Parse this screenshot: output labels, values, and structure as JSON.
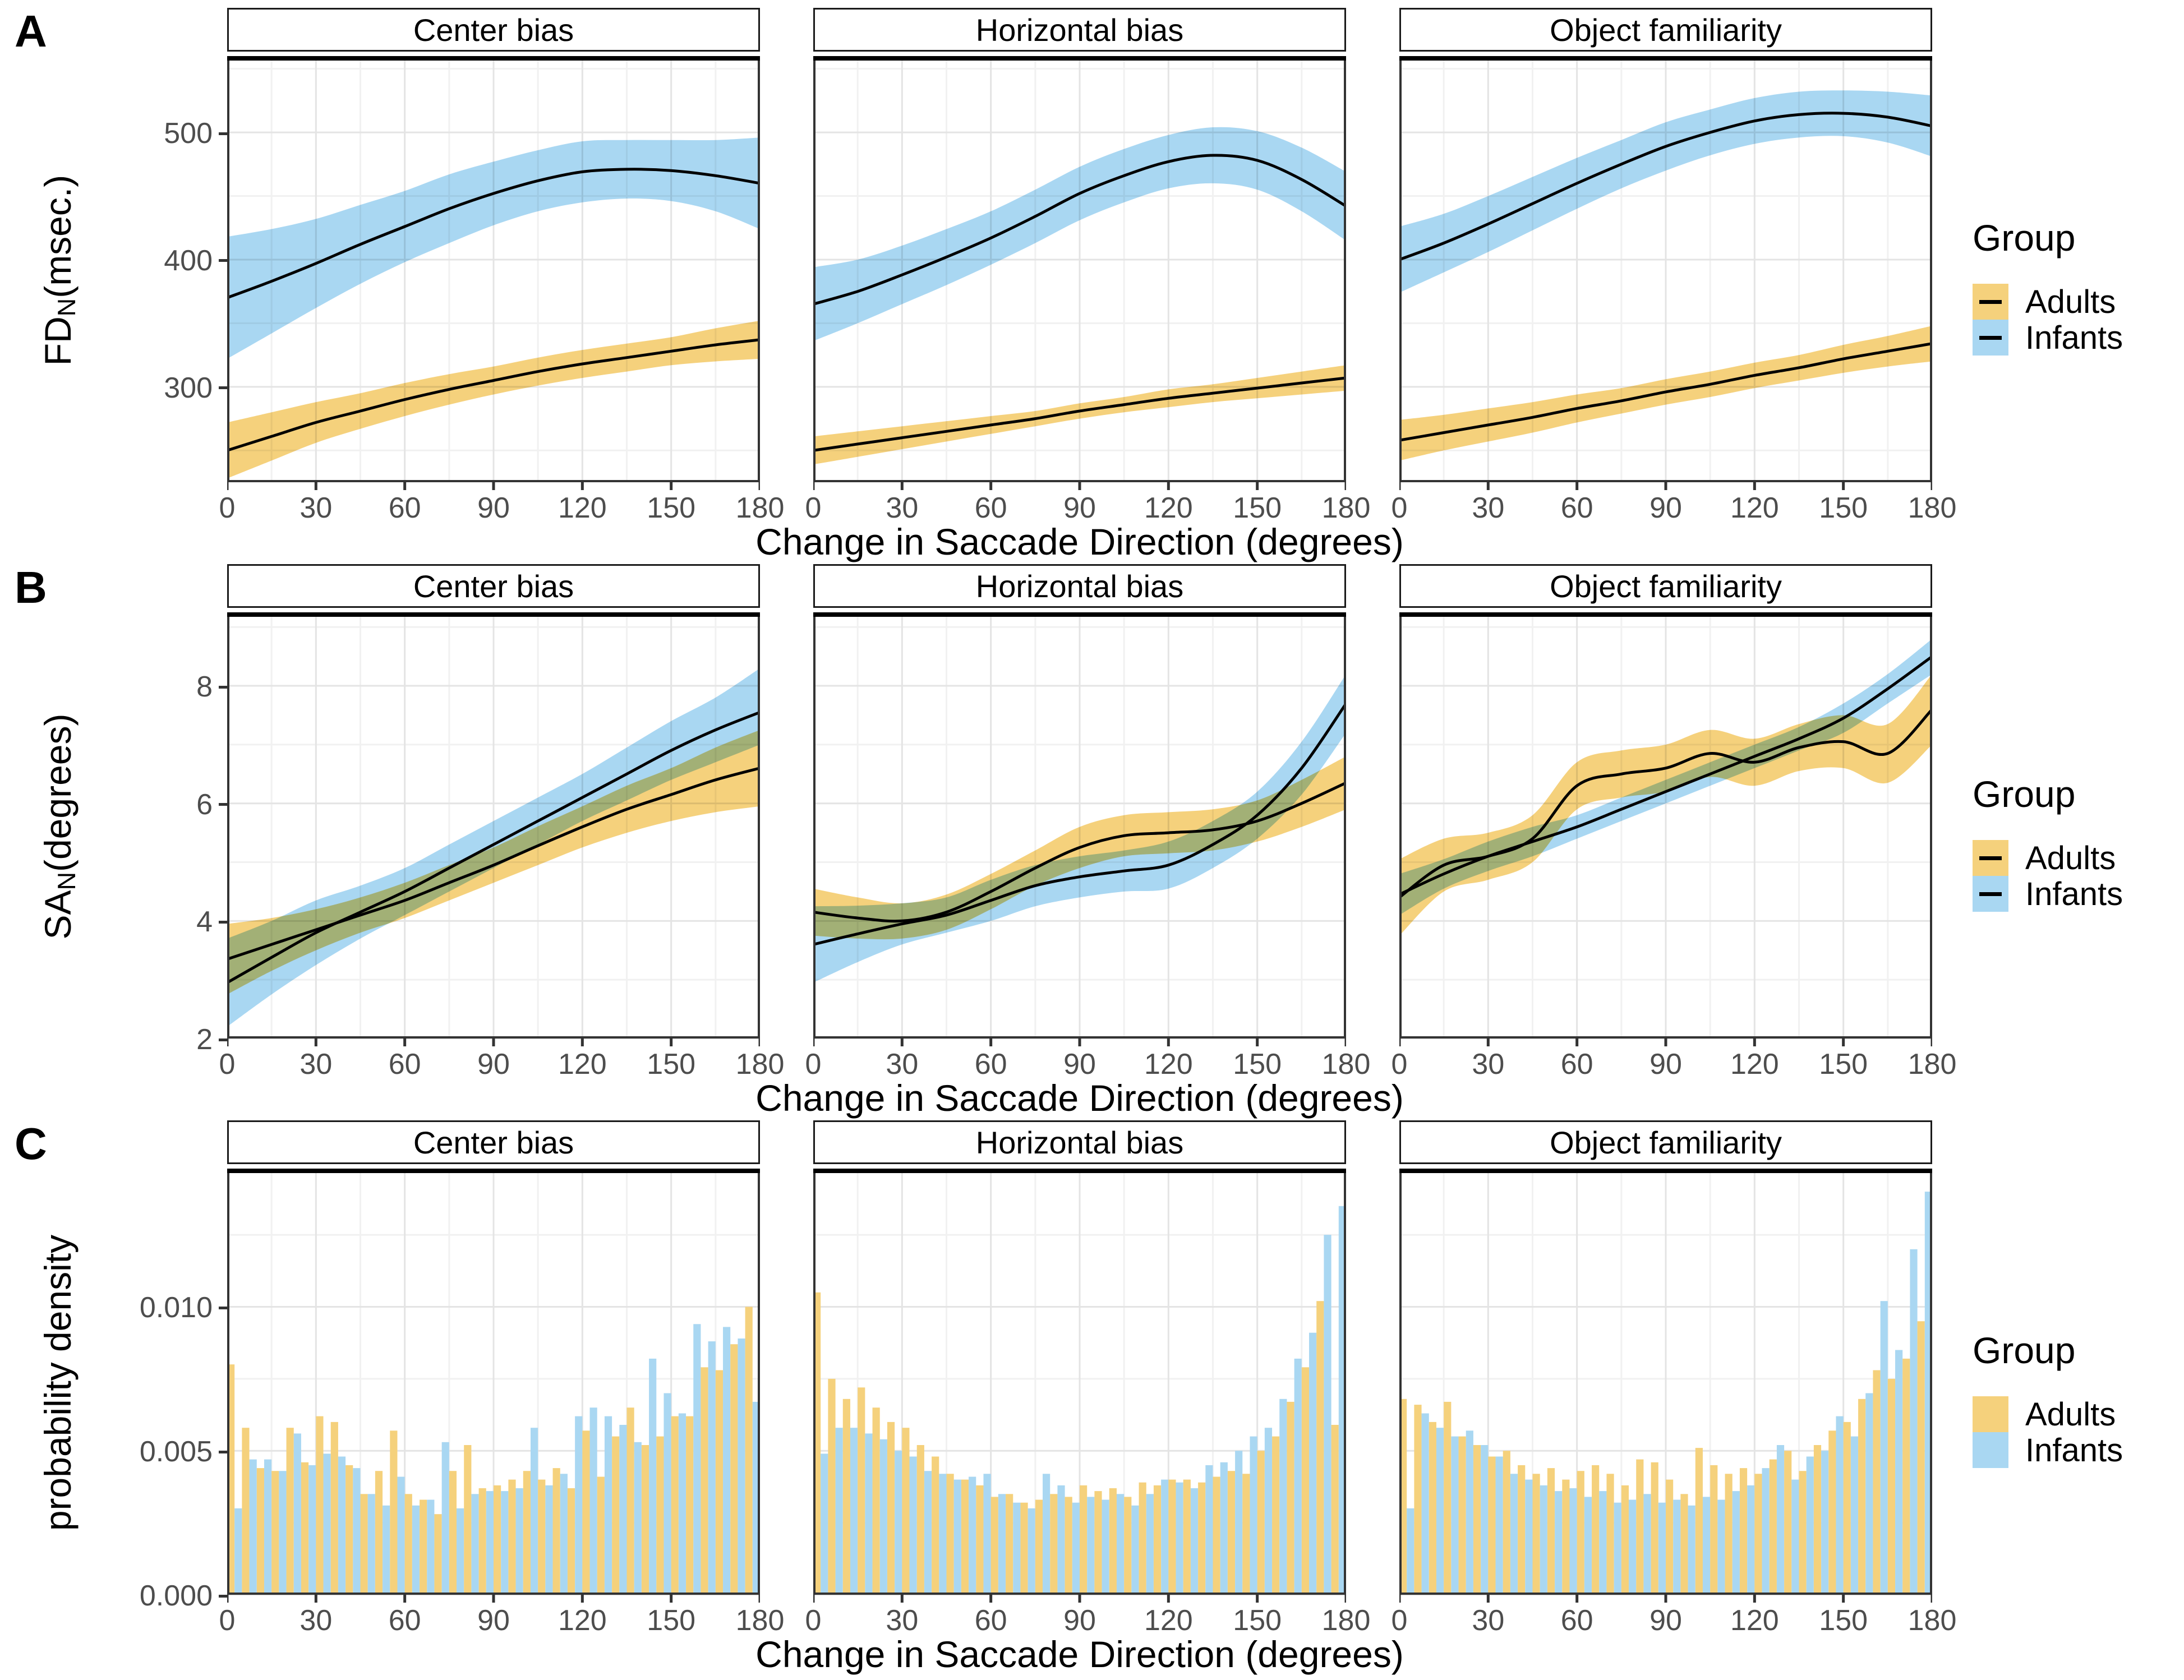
{
  "figure": {
    "row_letters": [
      "A",
      "B",
      "C"
    ],
    "facet_titles": [
      "Center bias",
      "Horizontal bias",
      "Object familiarity"
    ],
    "x_title": "Change in Saccade Direction (degrees)",
    "x_ticks": [
      0,
      30,
      60,
      90,
      120,
      150,
      180
    ],
    "x_minor": [
      15,
      45,
      75,
      105,
      135,
      165
    ],
    "x_range": [
      0,
      180
    ],
    "legend": {
      "title": "Group",
      "entries": [
        {
          "label": "Adults",
          "color": "#F5D17C"
        },
        {
          "label": "Infants",
          "color": "#A9D7F2"
        }
      ]
    }
  },
  "colors": {
    "adults_fill": "#F5D17C",
    "infants_fill": "#A9D7F2",
    "line": "#000000",
    "grid_major": "#E4E4E4",
    "grid_minor": "#F1F1F1",
    "panel_border": "#333333",
    "heavy_rule": "#000000",
    "tick_label": "#4D4D4D"
  },
  "chart_data": [
    {
      "type": "line",
      "row": "A",
      "ylabel_prefix": "FD",
      "ylabel_sub": "N",
      "ylabel_suffix": "(msec.)",
      "ylim": [
        225,
        560
      ],
      "yticks": [
        300,
        400,
        500
      ],
      "ytick_labels": [
        "300",
        "400",
        "500"
      ],
      "y_minor": [
        250,
        350,
        450,
        550
      ],
      "x": [
        0,
        15,
        30,
        45,
        60,
        75,
        90,
        105,
        120,
        135,
        150,
        165,
        180
      ],
      "panels": [
        {
          "title": "Center bias",
          "adults": {
            "y": [
              250,
              261,
              272,
              281,
              290,
              298,
              305,
              312,
              318,
              323,
              328,
              333,
              337
            ],
            "lo": [
              228,
              242,
              256,
              267,
              277,
              286,
              294,
              301,
              307,
              312,
              317,
              320,
              322
            ],
            "hi": [
              272,
              280,
              288,
              295,
              303,
              310,
              316,
              323,
              329,
              334,
              339,
              346,
              352
            ]
          },
          "infants": {
            "y": [
              370,
              383,
              397,
              412,
              426,
              440,
              452,
              462,
              469,
              471,
              470,
              466,
              460
            ],
            "lo": [
              322,
              342,
              362,
              381,
              398,
              413,
              427,
              438,
              445,
              448,
              446,
              438,
              424
            ],
            "hi": [
              418,
              424,
              432,
              443,
              454,
              467,
              477,
              486,
              493,
              494,
              494,
              494,
              496
            ]
          }
        },
        {
          "title": "Horizontal bias",
          "adults": {
            "y": [
              250,
              255,
              260,
              265,
              270,
              275,
              281,
              286,
              291,
              295,
              299,
              303,
              307
            ],
            "lo": [
              239,
              245,
              251,
              257,
              263,
              269,
              275,
              280,
              284,
              288,
              291,
              294,
              297
            ],
            "hi": [
              261,
              265,
              269,
              273,
              277,
              281,
              287,
              292,
              298,
              302,
              307,
              312,
              317
            ]
          },
          "infants": {
            "y": [
              365,
              375,
              388,
              402,
              417,
              434,
              452,
              466,
              477,
              482,
              478,
              463,
              442
            ],
            "lo": [
              336,
              350,
              365,
              380,
              396,
              413,
              431,
              445,
              456,
              460,
              455,
              438,
              415
            ],
            "hi": [
              394,
              400,
              411,
              424,
              438,
              455,
              473,
              487,
              498,
              504,
              501,
              488,
              469
            ]
          }
        },
        {
          "title": "Object familiarity",
          "adults": {
            "y": [
              258,
              264,
              270,
              276,
              283,
              289,
              296,
              302,
              309,
              315,
              322,
              328,
              334
            ],
            "lo": [
              242,
              250,
              257,
              264,
              272,
              279,
              286,
              292,
              299,
              305,
              311,
              316,
              320
            ],
            "hi": [
              274,
              278,
              283,
              288,
              294,
              299,
              306,
              312,
              319,
              325,
              333,
              340,
              348
            ]
          },
          "infants": {
            "y": [
              400,
              413,
              428,
              444,
              460,
              475,
              489,
              500,
              509,
              514,
              515,
              512,
              505
            ],
            "lo": [
              374,
              390,
              406,
              423,
              440,
              456,
              470,
              482,
              491,
              496,
              497,
              492,
              481
            ],
            "hi": [
              426,
              436,
              450,
              465,
              480,
              494,
              508,
              518,
              527,
              532,
              533,
              532,
              529
            ]
          }
        }
      ]
    },
    {
      "type": "line",
      "row": "B",
      "ylabel_prefix": "SA",
      "ylabel_sub": "N",
      "ylabel_suffix": "(degrees)",
      "ylim": [
        2,
        9.25
      ],
      "yticks": [
        2,
        4,
        6,
        8
      ],
      "ytick_labels": [
        "2",
        "4",
        "6",
        "8"
      ],
      "y_minor": [
        3,
        5,
        7,
        9
      ],
      "x": [
        0,
        15,
        30,
        45,
        60,
        75,
        90,
        105,
        120,
        135,
        150,
        165,
        180
      ],
      "panels": [
        {
          "title": "Center bias",
          "adults": {
            "y": [
              3.35,
              3.6,
              3.85,
              4.1,
              4.35,
              4.65,
              4.95,
              5.28,
              5.6,
              5.9,
              6.15,
              6.4,
              6.6
            ],
            "lo": [
              2.75,
              3.15,
              3.5,
              3.8,
              4.05,
              4.35,
              4.65,
              4.95,
              5.25,
              5.5,
              5.7,
              5.85,
              5.95
            ],
            "hi": [
              3.95,
              4.05,
              4.2,
              4.4,
              4.65,
              4.95,
              5.25,
              5.61,
              5.95,
              6.3,
              6.6,
              6.95,
              7.25
            ]
          },
          "infants": {
            "y": [
              2.95,
              3.38,
              3.8,
              4.15,
              4.5,
              4.9,
              5.3,
              5.7,
              6.1,
              6.5,
              6.9,
              7.25,
              7.55
            ],
            "lo": [
              2.2,
              2.75,
              3.25,
              3.7,
              4.1,
              4.5,
              4.9,
              5.3,
              5.7,
              6.05,
              6.4,
              6.7,
              7.0
            ],
            "hi": [
              3.7,
              4.0,
              4.35,
              4.6,
              4.9,
              5.3,
              5.7,
              6.1,
              6.5,
              6.95,
              7.4,
              7.8,
              8.3
            ]
          }
        },
        {
          "title": "Horizontal bias",
          "adults": {
            "y": [
              4.15,
              4.05,
              4.0,
              4.15,
              4.5,
              4.9,
              5.25,
              5.45,
              5.5,
              5.55,
              5.7,
              6.0,
              6.35
            ],
            "lo": [
              3.75,
              3.7,
              3.7,
              3.85,
              4.2,
              4.6,
              4.9,
              5.1,
              5.15,
              5.2,
              5.35,
              5.6,
              5.9
            ],
            "hi": [
              4.55,
              4.4,
              4.3,
              4.45,
              4.8,
              5.2,
              5.6,
              5.8,
              5.85,
              5.9,
              6.05,
              6.4,
              6.8
            ]
          },
          "infants": {
            "y": [
              3.6,
              3.78,
              3.95,
              4.1,
              4.35,
              4.6,
              4.75,
              4.85,
              4.95,
              5.3,
              5.8,
              6.6,
              7.7
            ],
            "lo": [
              2.95,
              3.3,
              3.6,
              3.8,
              4.0,
              4.25,
              4.4,
              4.5,
              4.55,
              4.9,
              5.4,
              6.15,
              7.2
            ],
            "hi": [
              4.25,
              4.26,
              4.3,
              4.4,
              4.7,
              4.95,
              5.1,
              5.2,
              5.35,
              5.7,
              6.2,
              7.05,
              8.2
            ]
          }
        },
        {
          "title": "Object familiarity",
          "adults": {
            "y": [
              4.4,
              4.95,
              5.1,
              5.4,
              6.3,
              6.5,
              6.6,
              6.85,
              6.7,
              6.95,
              7.05,
              6.85,
              7.6
            ],
            "lo": [
              3.75,
              4.5,
              4.7,
              5.0,
              5.9,
              6.1,
              6.2,
              6.45,
              6.3,
              6.55,
              6.6,
              6.35,
              7.0
            ],
            "hi": [
              5.05,
              5.4,
              5.5,
              5.8,
              6.7,
              6.9,
              7.0,
              7.25,
              7.1,
              7.35,
              7.5,
              7.35,
              8.2
            ]
          },
          "infants": {
            "y": [
              4.45,
              4.8,
              5.1,
              5.35,
              5.6,
              5.9,
              6.2,
              6.5,
              6.8,
              7.1,
              7.45,
              7.95,
              8.5
            ],
            "lo": [
              4.1,
              4.55,
              4.85,
              5.1,
              5.4,
              5.7,
              6.0,
              6.3,
              6.6,
              6.9,
              7.2,
              7.7,
              8.2
            ],
            "hi": [
              4.8,
              5.05,
              5.35,
              5.6,
              5.8,
              6.1,
              6.4,
              6.7,
              7.0,
              7.3,
              7.7,
              8.2,
              8.8
            ]
          }
        }
      ]
    },
    {
      "type": "histogram",
      "row": "C",
      "ylabel_prefix": "probability density",
      "ylabel_sub": "",
      "ylabel_suffix": "",
      "ylim": [
        0,
        0.0148
      ],
      "yticks": [
        0,
        0.005,
        0.01
      ],
      "ytick_labels": [
        "0.000",
        "0.005",
        "0.010"
      ],
      "y_minor": [
        0.0025,
        0.0075,
        0.0125
      ],
      "bin_width": 5,
      "panels": [
        {
          "title": "Center bias",
          "adults": [
            0.008,
            0.0058,
            0.0044,
            0.0043,
            0.0058,
            0.0046,
            0.0062,
            0.006,
            0.0045,
            0.0035,
            0.0043,
            0.0057,
            0.0035,
            0.0033,
            0.0028,
            0.0043,
            0.0052,
            0.0037,
            0.0038,
            0.004,
            0.0043,
            0.004,
            0.0044,
            0.0037,
            0.0057,
            0.0041,
            0.0055,
            0.0065,
            0.0052,
            0.0055,
            0.0062,
            0.0062,
            0.0079,
            0.0078,
            0.0087,
            0.01
          ],
          "infants": [
            0.003,
            0.0047,
            0.0047,
            0.0043,
            0.0056,
            0.0045,
            0.0049,
            0.0048,
            0.0044,
            0.0035,
            0.0031,
            0.0041,
            0.0031,
            0.0033,
            0.0053,
            0.003,
            0.0035,
            0.0036,
            0.0036,
            0.0037,
            0.0058,
            0.0038,
            0.0042,
            0.0062,
            0.0065,
            0.0062,
            0.0059,
            0.0053,
            0.0082,
            0.007,
            0.0063,
            0.0094,
            0.0088,
            0.0093,
            0.0089,
            0.0067
          ]
        },
        {
          "title": "Horizontal bias",
          "adults": [
            0.0105,
            0.0075,
            0.0068,
            0.0072,
            0.0065,
            0.006,
            0.0058,
            0.0052,
            0.0048,
            0.0042,
            0.004,
            0.0038,
            0.0034,
            0.0035,
            0.0032,
            0.0033,
            0.0035,
            0.0034,
            0.0038,
            0.0036,
            0.0037,
            0.0034,
            0.0039,
            0.0038,
            0.004,
            0.004,
            0.0039,
            0.0041,
            0.0043,
            0.0042,
            0.005,
            0.0055,
            0.0067,
            0.0079,
            0.0102,
            0.0059
          ],
          "infants": [
            0.0049,
            0.0058,
            0.0058,
            0.0056,
            0.0054,
            0.005,
            0.0048,
            0.0043,
            0.0042,
            0.004,
            0.0041,
            0.0042,
            0.0035,
            0.0032,
            0.003,
            0.0042,
            0.0038,
            0.0032,
            0.0034,
            0.0033,
            0.0035,
            0.0031,
            0.0035,
            0.004,
            0.0039,
            0.0037,
            0.0045,
            0.0046,
            0.005,
            0.0055,
            0.0058,
            0.0068,
            0.0082,
            0.0091,
            0.0125,
            0.0135
          ]
        },
        {
          "title": "Object familiarity",
          "adults": [
            0.0068,
            0.0066,
            0.006,
            0.0067,
            0.0055,
            0.0052,
            0.0048,
            0.005,
            0.0045,
            0.0042,
            0.0044,
            0.004,
            0.0043,
            0.0045,
            0.0042,
            0.0038,
            0.0047,
            0.0046,
            0.004,
            0.0035,
            0.0051,
            0.0045,
            0.0042,
            0.0044,
            0.0042,
            0.0047,
            0.005,
            0.0043,
            0.0052,
            0.0057,
            0.006,
            0.0068,
            0.0078,
            0.0075,
            0.0082,
            0.0095
          ],
          "infants": [
            0.003,
            0.0063,
            0.0058,
            0.0055,
            0.0057,
            0.0052,
            0.0048,
            0.0042,
            0.004,
            0.0038,
            0.0036,
            0.0037,
            0.0034,
            0.0036,
            0.0032,
            0.0033,
            0.0035,
            0.0032,
            0.0033,
            0.0031,
            0.0034,
            0.0033,
            0.0036,
            0.0038,
            0.0044,
            0.0052,
            0.004,
            0.0048,
            0.005,
            0.0062,
            0.0055,
            0.007,
            0.0102,
            0.0085,
            0.012,
            0.014
          ]
        }
      ]
    }
  ]
}
